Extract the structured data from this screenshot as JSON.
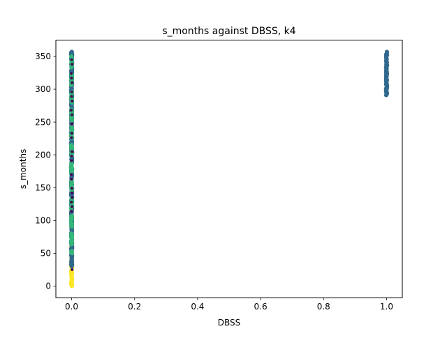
{
  "chart_data": {
    "type": "scatter",
    "title": "s_months against DBSS, k4",
    "xlabel": "DBSS",
    "ylabel": "s_months",
    "xlim": [
      -0.05,
      1.05
    ],
    "ylim": [
      -17.8,
      374.8
    ],
    "xticks": [
      0.0,
      0.2,
      0.4,
      0.6,
      0.8,
      1.0
    ],
    "xtick_labels": [
      "0.0",
      "0.2",
      "0.4",
      "0.6",
      "0.8",
      "1.0"
    ],
    "yticks": [
      0,
      50,
      100,
      150,
      200,
      250,
      300,
      350
    ],
    "ytick_labels": [
      "0",
      "50",
      "100",
      "150",
      "200",
      "250",
      "300",
      "350"
    ],
    "grid": false,
    "legend": "none",
    "clusters": [
      {
        "x": 0.0,
        "y_min": 0,
        "y_max": 60,
        "color": "#fde725",
        "pattern": "dense"
      },
      {
        "x": 0.0,
        "y_min": 25,
        "y_max": 110,
        "color": "#440154",
        "pattern": "sparse"
      },
      {
        "x": 0.0,
        "y_min": 30,
        "y_max": 357,
        "color": "#31688e",
        "pattern": "dense"
      },
      {
        "x": 0.0,
        "y_min": 50,
        "y_max": 357,
        "color": "#35b779",
        "pattern": "patchy"
      },
      {
        "x": 0.0,
        "y_min": 100,
        "y_max": 357,
        "color": "#440154",
        "pattern": "sparse"
      },
      {
        "x": 1.0,
        "y_min": 291,
        "y_max": 357,
        "color": "#31688e",
        "pattern": "dense"
      }
    ]
  }
}
